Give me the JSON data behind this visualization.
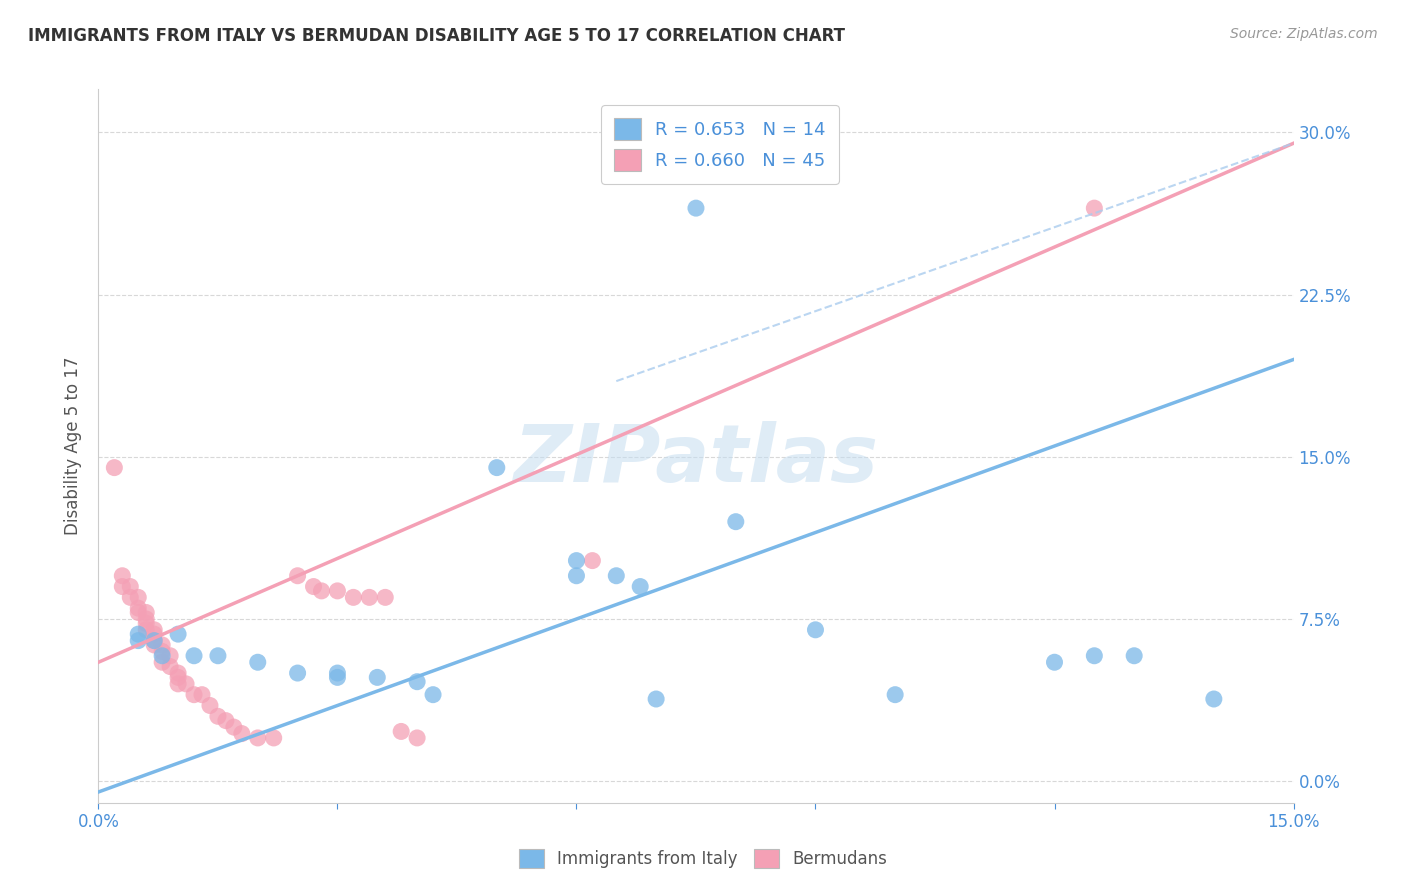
{
  "title": "IMMIGRANTS FROM ITALY VS BERMUDAN DISABILITY AGE 5 TO 17 CORRELATION CHART",
  "source": "Source: ZipAtlas.com",
  "ylabel": "Disability Age 5 to 17",
  "ytick_vals": [
    0.0,
    0.075,
    0.15,
    0.225,
    0.3
  ],
  "xlim": [
    0.0,
    0.15
  ],
  "ylim": [
    -0.01,
    0.32
  ],
  "legend_label_blue": "Immigrants from Italy",
  "legend_label_pink": "Bermudans",
  "blue_color": "#7bb8e8",
  "pink_color": "#f4a0b5",
  "blue_scatter": [
    [
      0.005,
      0.068
    ],
    [
      0.007,
      0.065
    ],
    [
      0.01,
      0.068
    ],
    [
      0.005,
      0.065
    ],
    [
      0.008,
      0.058
    ],
    [
      0.012,
      0.058
    ],
    [
      0.015,
      0.058
    ],
    [
      0.02,
      0.055
    ],
    [
      0.025,
      0.05
    ],
    [
      0.03,
      0.05
    ],
    [
      0.03,
      0.048
    ],
    [
      0.035,
      0.048
    ],
    [
      0.04,
      0.046
    ],
    [
      0.042,
      0.04
    ],
    [
      0.05,
      0.145
    ],
    [
      0.06,
      0.102
    ],
    [
      0.06,
      0.095
    ],
    [
      0.065,
      0.095
    ],
    [
      0.068,
      0.09
    ],
    [
      0.07,
      0.038
    ],
    [
      0.075,
      0.265
    ],
    [
      0.08,
      0.12
    ],
    [
      0.09,
      0.07
    ],
    [
      0.1,
      0.04
    ],
    [
      0.12,
      0.055
    ],
    [
      0.125,
      0.058
    ],
    [
      0.13,
      0.058
    ],
    [
      0.14,
      0.038
    ]
  ],
  "pink_scatter": [
    [
      0.002,
      0.145
    ],
    [
      0.003,
      0.095
    ],
    [
      0.003,
      0.09
    ],
    [
      0.004,
      0.09
    ],
    [
      0.004,
      0.085
    ],
    [
      0.005,
      0.085
    ],
    [
      0.005,
      0.08
    ],
    [
      0.005,
      0.078
    ],
    [
      0.006,
      0.078
    ],
    [
      0.006,
      0.075
    ],
    [
      0.006,
      0.073
    ],
    [
      0.006,
      0.07
    ],
    [
      0.007,
      0.07
    ],
    [
      0.007,
      0.068
    ],
    [
      0.007,
      0.065
    ],
    [
      0.007,
      0.063
    ],
    [
      0.008,
      0.063
    ],
    [
      0.008,
      0.06
    ],
    [
      0.008,
      0.055
    ],
    [
      0.009,
      0.058
    ],
    [
      0.009,
      0.053
    ],
    [
      0.01,
      0.05
    ],
    [
      0.01,
      0.048
    ],
    [
      0.01,
      0.045
    ],
    [
      0.011,
      0.045
    ],
    [
      0.012,
      0.04
    ],
    [
      0.013,
      0.04
    ],
    [
      0.014,
      0.035
    ],
    [
      0.015,
      0.03
    ],
    [
      0.016,
      0.028
    ],
    [
      0.017,
      0.025
    ],
    [
      0.018,
      0.022
    ],
    [
      0.02,
      0.02
    ],
    [
      0.022,
      0.02
    ],
    [
      0.025,
      0.095
    ],
    [
      0.027,
      0.09
    ],
    [
      0.028,
      0.088
    ],
    [
      0.03,
      0.088
    ],
    [
      0.032,
      0.085
    ],
    [
      0.034,
      0.085
    ],
    [
      0.036,
      0.085
    ],
    [
      0.038,
      0.023
    ],
    [
      0.04,
      0.02
    ],
    [
      0.062,
      0.102
    ],
    [
      0.125,
      0.265
    ]
  ],
  "blue_line_x": [
    0.0,
    0.15
  ],
  "blue_line_y": [
    -0.005,
    0.195
  ],
  "pink_line_x": [
    0.0,
    0.15
  ],
  "pink_line_y": [
    0.055,
    0.295
  ],
  "blue_dashed_line_x": [
    0.065,
    0.15
  ],
  "blue_dashed_line_y": [
    0.185,
    0.295
  ],
  "watermark": "ZIPatlas",
  "grid_color": "#d8d8d8",
  "background_color": "#ffffff"
}
